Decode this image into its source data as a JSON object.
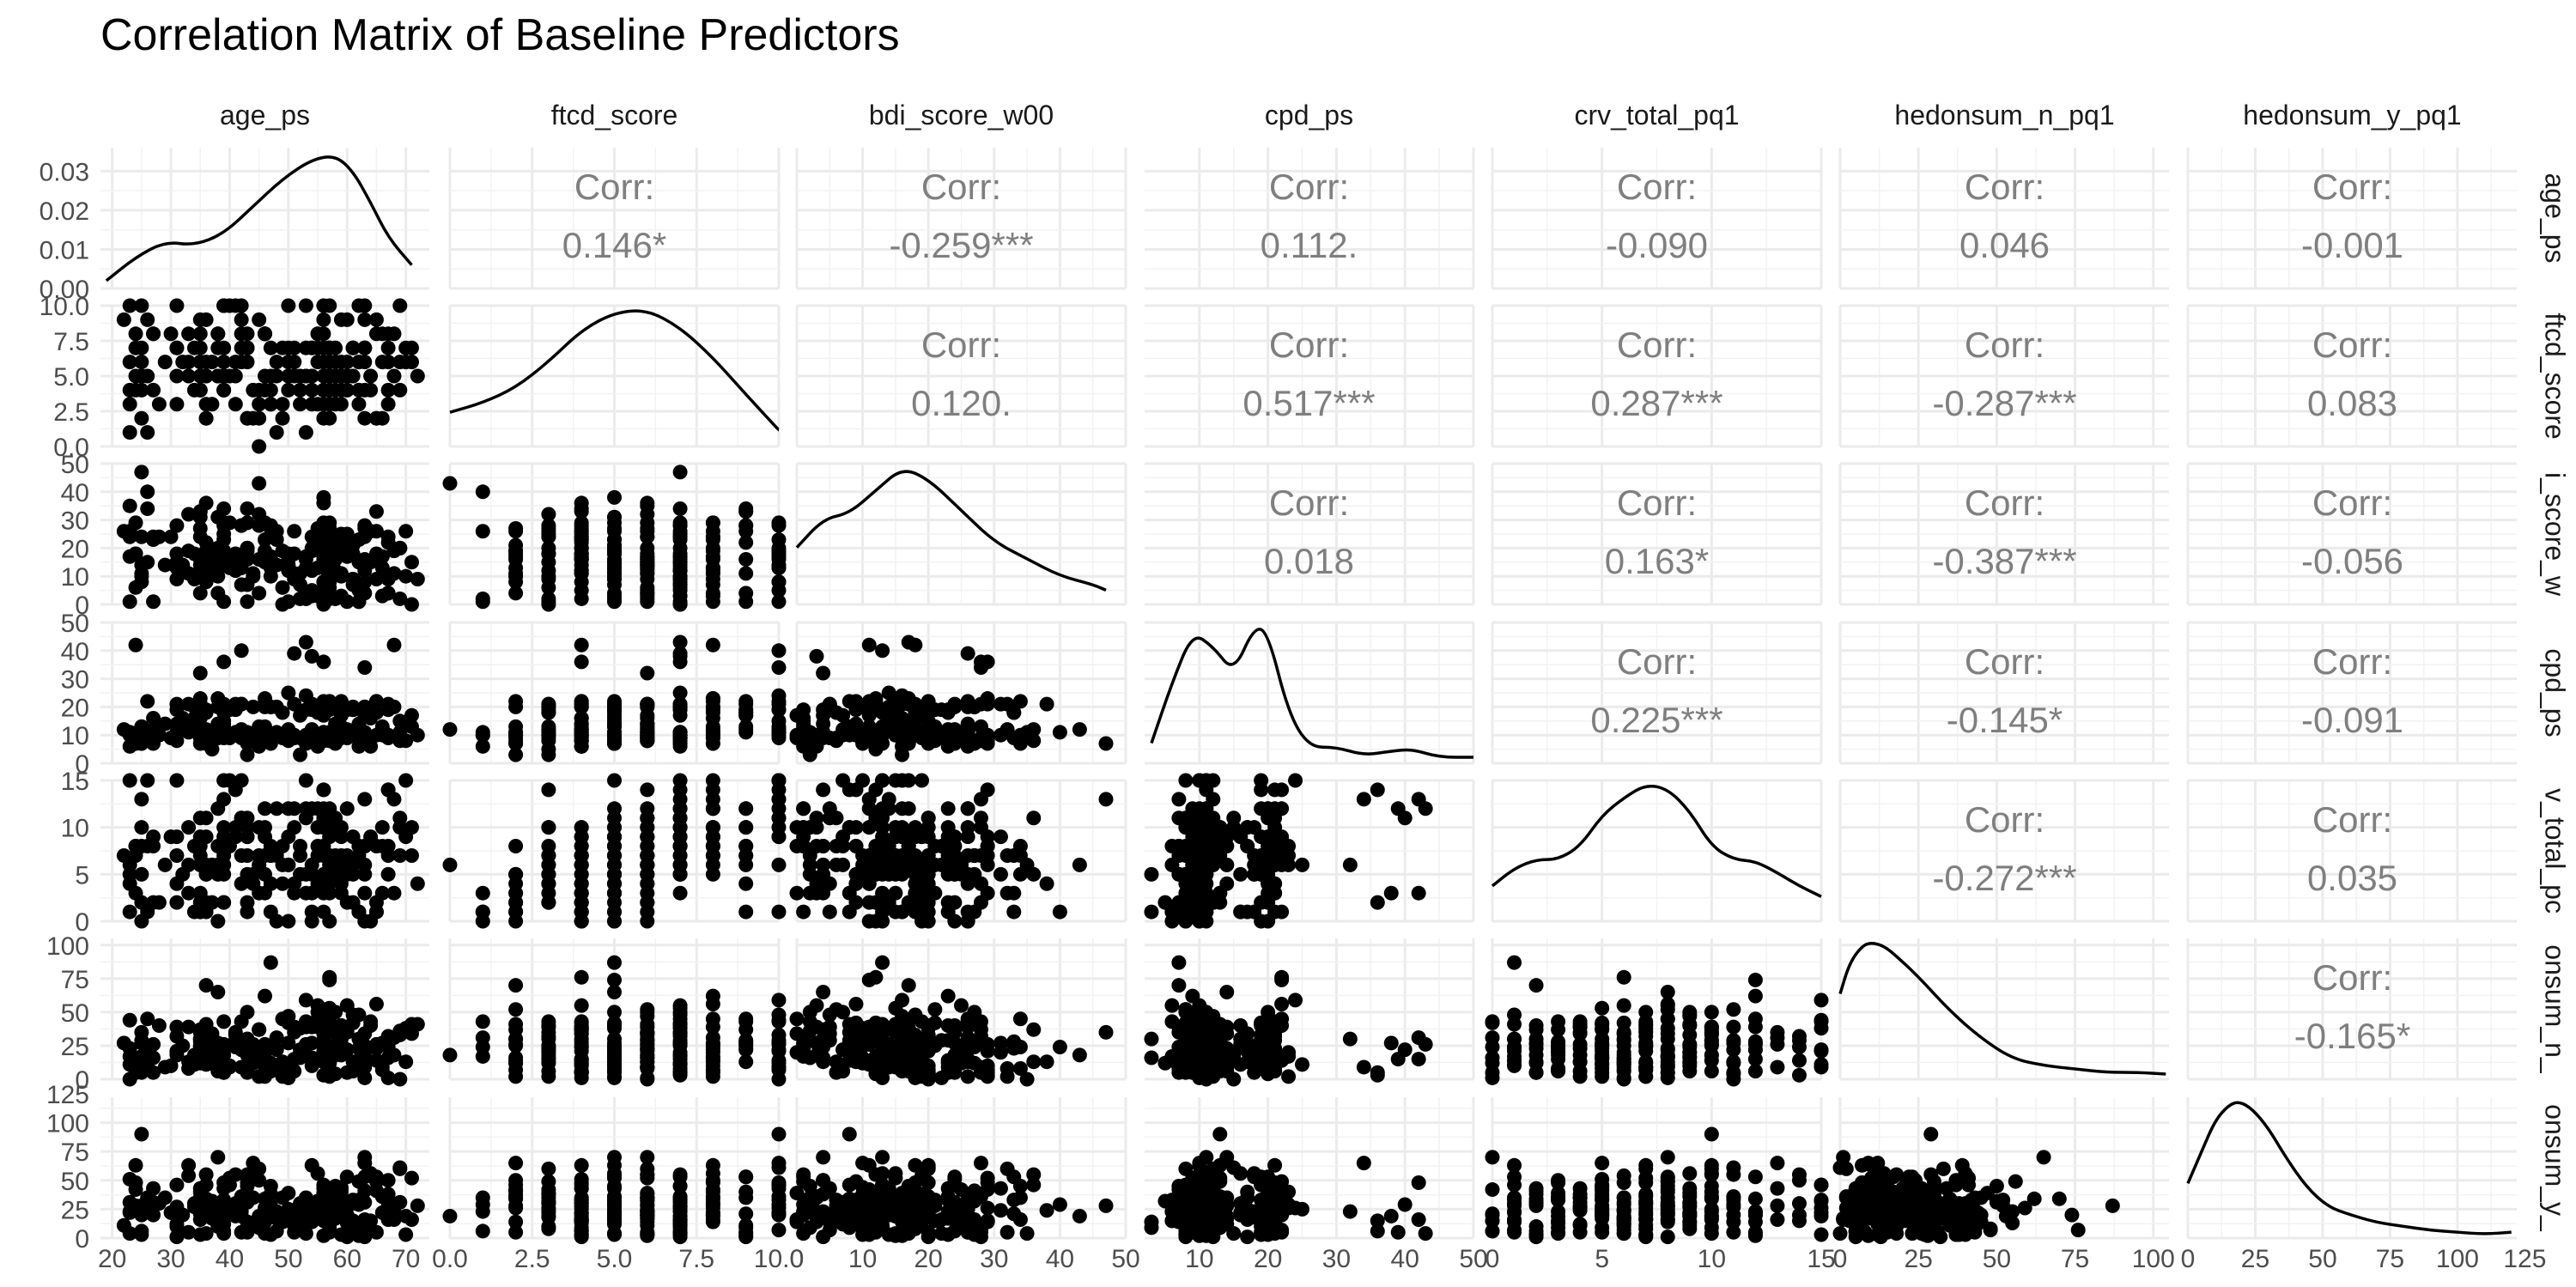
{
  "title": "Correlation Matrix of Baseline Predictors",
  "chart_data": {
    "type": "scatter",
    "kind": "pairs-matrix",
    "variables": [
      "age_ps",
      "ftcd_score",
      "bdi_score_w00",
      "cpd_ps",
      "crv_total_pq1",
      "hedonsum_n_pq1",
      "hedonsum_y_pq1"
    ],
    "column_labels": [
      "age_ps",
      "ftcd_score",
      "bdi_score_w00",
      "cpd_ps",
      "crv_total_pq1",
      "hedonsum_n_pq1",
      "hedonsum_y_pq1"
    ],
    "row_labels": [
      "age_ps",
      "ftcd_score",
      "i_score_w",
      "cpd_ps",
      "v_total_pc",
      "onsum_n_",
      "onsum_y_"
    ],
    "corr_label": "Corr:",
    "correlations": [
      {
        "row": 0,
        "col": 1,
        "text": "0.146*"
      },
      {
        "row": 0,
        "col": 2,
        "text": "-0.259***"
      },
      {
        "row": 0,
        "col": 3,
        "text": "0.112."
      },
      {
        "row": 0,
        "col": 4,
        "text": "-0.090"
      },
      {
        "row": 0,
        "col": 5,
        "text": "0.046"
      },
      {
        "row": 0,
        "col": 6,
        "text": "-0.001"
      },
      {
        "row": 1,
        "col": 2,
        "text": "0.120."
      },
      {
        "row": 1,
        "col": 3,
        "text": "0.517***"
      },
      {
        "row": 1,
        "col": 4,
        "text": "0.287***"
      },
      {
        "row": 1,
        "col": 5,
        "text": "-0.287***"
      },
      {
        "row": 1,
        "col": 6,
        "text": "0.083"
      },
      {
        "row": 2,
        "col": 3,
        "text": "0.018"
      },
      {
        "row": 2,
        "col": 4,
        "text": "0.163*"
      },
      {
        "row": 2,
        "col": 5,
        "text": "-0.387***"
      },
      {
        "row": 2,
        "col": 6,
        "text": "-0.056"
      },
      {
        "row": 3,
        "col": 4,
        "text": "0.225***"
      },
      {
        "row": 3,
        "col": 5,
        "text": "-0.145*"
      },
      {
        "row": 3,
        "col": 6,
        "text": "-0.091"
      },
      {
        "row": 4,
        "col": 5,
        "text": "-0.272***"
      },
      {
        "row": 4,
        "col": 6,
        "text": "0.035"
      },
      {
        "row": 5,
        "col": 6,
        "text": "-0.165*"
      }
    ],
    "x_axes": [
      {
        "range": [
          18,
          74
        ],
        "ticks": [
          20,
          30,
          40,
          50,
          60,
          70
        ],
        "tick_labels": [
          "20",
          "30",
          "40",
          "50",
          "60",
          "70"
        ]
      },
      {
        "range": [
          0,
          10
        ],
        "ticks": [
          0,
          2.5,
          5,
          7.5,
          10
        ],
        "tick_labels": [
          "0.0",
          "2.5",
          "5.0",
          "7.5",
          "10.0"
        ]
      },
      {
        "range": [
          0,
          50
        ],
        "ticks": [
          0,
          10,
          20,
          30,
          40,
          50
        ],
        "tick_labels": [
          "0",
          "10",
          "20",
          "30",
          "40",
          "50"
        ]
      },
      {
        "range": [
          2,
          50
        ],
        "ticks": [
          10,
          20,
          30,
          40,
          50
        ],
        "tick_labels": [
          "10",
          "20",
          "30",
          "40",
          "50"
        ]
      },
      {
        "range": [
          0,
          15
        ],
        "ticks": [
          0,
          5,
          10,
          15
        ],
        "tick_labels": [
          "0",
          "5",
          "10",
          "15"
        ]
      },
      {
        "range": [
          0,
          105
        ],
        "ticks": [
          0,
          25,
          50,
          75,
          100
        ],
        "tick_labels": [
          "0",
          "25",
          "50",
          "75",
          "100"
        ]
      },
      {
        "range": [
          0,
          122
        ],
        "ticks": [
          0,
          25,
          50,
          75,
          100,
          125
        ],
        "tick_labels": [
          "0",
          "25",
          "50",
          "75",
          "100",
          "125"
        ]
      }
    ],
    "y_axes": [
      {
        "range": [
          0,
          0.036
        ],
        "ticks": [
          0,
          0.01,
          0.02,
          0.03
        ],
        "tick_labels": [
          "0.00",
          "0.01",
          "0.02",
          "0.03"
        ]
      },
      {
        "range": [
          0,
          10
        ],
        "ticks": [
          0,
          2.5,
          5,
          7.5,
          10
        ],
        "tick_labels": [
          "0.0",
          "2.5",
          "5.0",
          "7.5",
          "10.0"
        ]
      },
      {
        "range": [
          0,
          50
        ],
        "ticks": [
          0,
          10,
          20,
          30,
          40,
          50
        ],
        "tick_labels": [
          "0",
          "10",
          "20",
          "30",
          "40",
          "50"
        ]
      },
      {
        "range": [
          0,
          50
        ],
        "ticks": [
          0,
          10,
          20,
          30,
          40,
          50
        ],
        "tick_labels": [
          "0",
          "10",
          "20",
          "30",
          "40",
          "50"
        ]
      },
      {
        "range": [
          0,
          15
        ],
        "ticks": [
          0,
          5,
          10,
          15
        ],
        "tick_labels": [
          "0",
          "5",
          "10",
          "15"
        ]
      },
      {
        "range": [
          0,
          105
        ],
        "ticks": [
          0,
          25,
          50,
          75,
          100
        ],
        "tick_labels": [
          "0",
          "25",
          "50",
          "75",
          "100"
        ]
      },
      {
        "range": [
          0,
          122
        ],
        "ticks": [
          0,
          25,
          50,
          75,
          100,
          125
        ],
        "tick_labels": [
          "0",
          "25",
          "50",
          "75",
          "100",
          "125"
        ]
      }
    ],
    "densities": [
      {
        "x": [
          19,
          24,
          29,
          34,
          39,
          44,
          49,
          54,
          58,
          61,
          64,
          67,
          71
        ],
        "y": [
          0.002,
          0.008,
          0.012,
          0.011,
          0.014,
          0.021,
          0.028,
          0.033,
          0.034,
          0.03,
          0.022,
          0.013,
          0.006
        ]
      },
      {
        "x": [
          0,
          1,
          2,
          3,
          4,
          5,
          6,
          7,
          8,
          9,
          10
        ],
        "y": [
          0.025,
          0.032,
          0.043,
          0.062,
          0.085,
          0.098,
          0.1,
          0.087,
          0.065,
          0.038,
          0.012
        ]
      },
      {
        "x": [
          0,
          4,
          8,
          12,
          16,
          20,
          25,
          30,
          35,
          40,
          45,
          47
        ],
        "y": [
          0.02,
          0.03,
          0.032,
          0.04,
          0.048,
          0.044,
          0.033,
          0.022,
          0.016,
          0.01,
          0.007,
          0.005
        ]
      },
      {
        "x": [
          3,
          6,
          9,
          12,
          15,
          18,
          20,
          23,
          26,
          30,
          34,
          38,
          41,
          45,
          50
        ],
        "y": [
          0.01,
          0.04,
          0.065,
          0.058,
          0.045,
          0.068,
          0.065,
          0.025,
          0.008,
          0.008,
          0.004,
          0.006,
          0.007,
          0.003,
          0.003
        ]
      },
      {
        "x": [
          0,
          1,
          2,
          3,
          4,
          5,
          6,
          7,
          8,
          9,
          10,
          11,
          12,
          13,
          14,
          15
        ],
        "y": [
          0.04,
          0.06,
          0.07,
          0.07,
          0.085,
          0.12,
          0.14,
          0.155,
          0.15,
          0.125,
          0.085,
          0.07,
          0.068,
          0.055,
          0.04,
          0.028
        ]
      },
      {
        "x": [
          0,
          3,
          7,
          10,
          14,
          18,
          25,
          35,
          45,
          55,
          65,
          75,
          85,
          95,
          104
        ],
        "y": [
          0.025,
          0.034,
          0.039,
          0.04,
          0.039,
          0.036,
          0.03,
          0.02,
          0.012,
          0.006,
          0.004,
          0.003,
          0.002,
          0.002,
          0.0015
        ]
      },
      {
        "x": [
          0,
          5,
          10,
          15,
          19,
          24,
          30,
          36,
          44,
          52,
          60,
          70,
          80,
          90,
          100,
          110,
          120
        ],
        "y": [
          0.014,
          0.022,
          0.03,
          0.034,
          0.035,
          0.033,
          0.028,
          0.021,
          0.013,
          0.008,
          0.006,
          0.004,
          0.003,
          0.002,
          0.0015,
          0.001,
          0.0015
        ]
      }
    ]
  }
}
